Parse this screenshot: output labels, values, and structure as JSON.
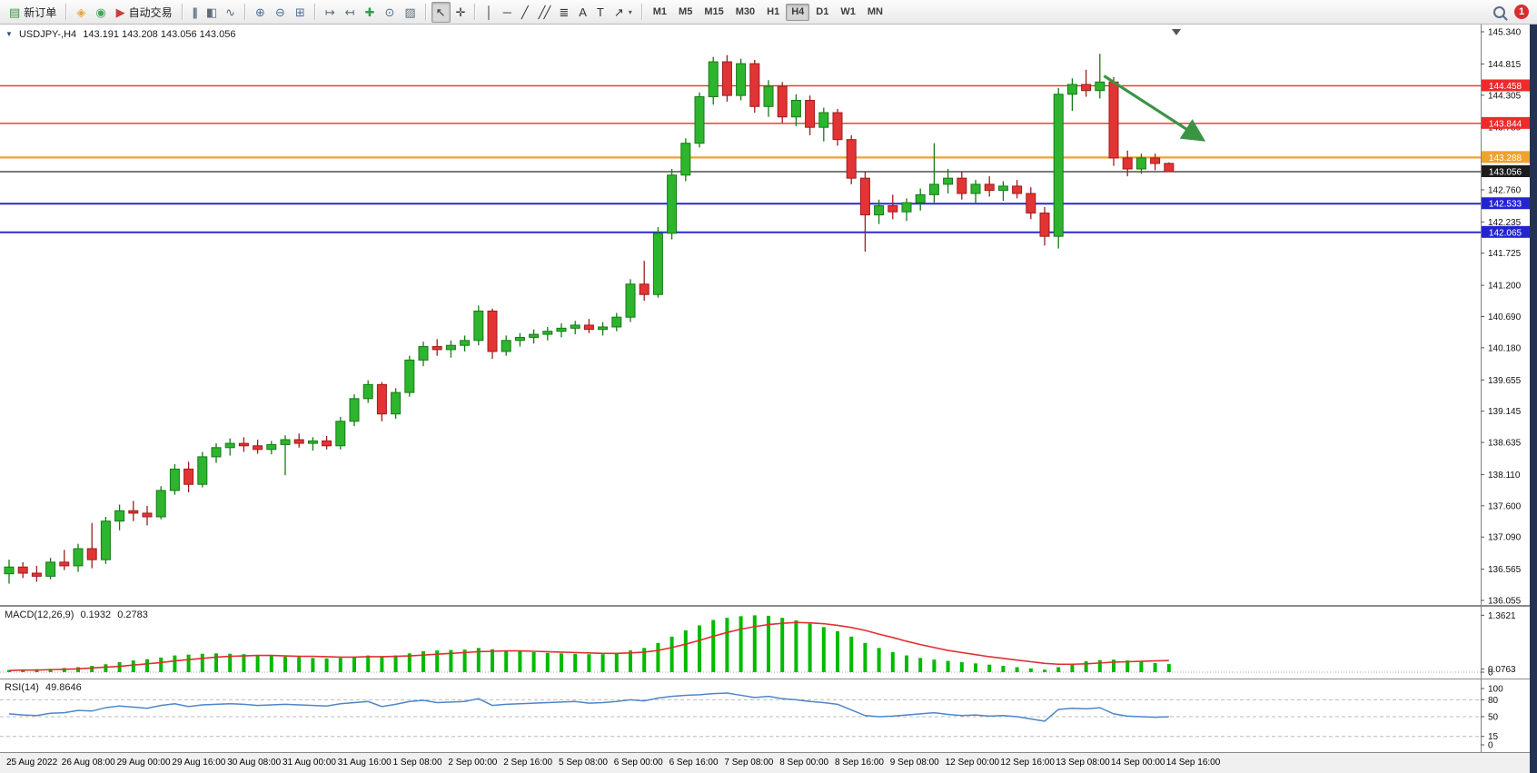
{
  "window": {
    "notification_count": "1"
  },
  "toolbar": {
    "items": [
      {
        "kind": "button",
        "name": "new-order-button",
        "icon_name": "new-order-icon",
        "glyph": "▤",
        "glyph_color": "#3d8f3d",
        "label": "新订单"
      },
      {
        "kind": "sep"
      },
      {
        "kind": "icon",
        "name": "mql5-wizard-button",
        "icon_name": "compass-icon",
        "glyph": "◈",
        "glyph_color": "#e2a63c"
      },
      {
        "kind": "icon",
        "name": "market-button",
        "icon_name": "market-icon",
        "glyph": "◉",
        "glyph_color": "#46a65a"
      },
      {
        "kind": "button",
        "name": "autotrading-button",
        "icon_name": "autotrading-play-icon",
        "glyph": "▶",
        "glyph_color": "#cf3a3a",
        "label": "自动交易"
      },
      {
        "kind": "sep"
      },
      {
        "kind": "icon",
        "name": "bars-chart-button",
        "icon_name": "ohlc-bars-icon",
        "glyph": "|||",
        "glyph_color": "#5a6b7a"
      },
      {
        "kind": "icon",
        "name": "candlestick-chart-button",
        "icon_name": "candlestick-icon",
        "glyph": "▮▯",
        "glyph_color": "#5a6b7a"
      },
      {
        "kind": "icon",
        "name": "line-chart-button",
        "icon_name": "line-chart-icon",
        "glyph": "∿",
        "glyph_color": "#5a6b7a"
      },
      {
        "kind": "sep"
      },
      {
        "kind": "icon",
        "name": "zoom-in-button",
        "icon_name": "zoom-in-icon",
        "glyph": "⊕",
        "glyph_color": "#4a6f9e"
      },
      {
        "kind": "icon",
        "name": "zoom-out-button",
        "icon_name": "zoom-out-icon",
        "glyph": "⊖",
        "glyph_color": "#4a6f9e"
      },
      {
        "kind": "icon",
        "name": "tile-windows-button",
        "icon_name": "tile-windows-icon",
        "glyph": "⊞",
        "glyph_color": "#4a6f9e"
      },
      {
        "kind": "sep"
      },
      {
        "kind": "icon",
        "name": "auto-scroll-button",
        "icon_name": "auto-scroll-icon",
        "glyph": "↦",
        "glyph_color": "#5a6b7a"
      },
      {
        "kind": "icon",
        "name": "chart-shift-button",
        "icon_name": "chart-shift-icon",
        "glyph": "↤",
        "glyph_color": "#5a6b7a"
      },
      {
        "kind": "icon",
        "name": "indicators-button",
        "icon_name": "add-indicator-icon",
        "glyph": "✚",
        "glyph_color": "#2f9e44"
      },
      {
        "kind": "icon",
        "name": "periods-button",
        "icon_name": "clock-icon",
        "glyph": "⊙",
        "glyph_color": "#4a6f9e"
      },
      {
        "kind": "icon",
        "name": "templates-button",
        "icon_name": "template-icon",
        "glyph": "▨",
        "glyph_color": "#5a6b7a"
      },
      {
        "kind": "sep"
      },
      {
        "kind": "icon",
        "name": "cursor-button",
        "icon_name": "cursor-icon",
        "glyph": "↖",
        "glyph_color": "#333333",
        "active": true
      },
      {
        "kind": "icon",
        "name": "crosshair-button",
        "icon_name": "crosshair-icon",
        "glyph": "✛",
        "glyph_color": "#333333"
      },
      {
        "kind": "sep"
      },
      {
        "kind": "icon",
        "name": "vertical-line-button",
        "icon_name": "vertical-line-icon",
        "glyph": "│",
        "glyph_color": "#333333"
      },
      {
        "kind": "icon",
        "name": "horizontal-line-button",
        "icon_name": "horizontal-line-icon",
        "glyph": "─",
        "glyph_color": "#333333"
      },
      {
        "kind": "icon",
        "name": "trendline-button",
        "icon_name": "trendline-icon",
        "glyph": "╱",
        "glyph_color": "#333333"
      },
      {
        "kind": "icon",
        "name": "channel-button",
        "icon_name": "channel-icon",
        "glyph": "╱╱",
        "glyph_color": "#333333"
      },
      {
        "kind": "icon",
        "name": "fibonacci-button",
        "icon_name": "fibonacci-icon",
        "glyph": "≣",
        "glyph_color": "#333333"
      },
      {
        "kind": "icon",
        "name": "text-button",
        "icon_name": "text-icon",
        "glyph": "A",
        "glyph_color": "#333333"
      },
      {
        "kind": "icon",
        "name": "text-label-button",
        "icon_name": "text-label-icon",
        "glyph": "T",
        "glyph_color": "#333333"
      },
      {
        "kind": "icon",
        "name": "arrows-button",
        "icon_name": "arrow-objects-icon",
        "glyph": "↗",
        "glyph_color": "#333333",
        "caret": true
      },
      {
        "kind": "sep"
      },
      {
        "kind": "tf",
        "name": "timeframe-m1-button",
        "label": "M1"
      },
      {
        "kind": "tf",
        "name": "timeframe-m5-button",
        "label": "M5"
      },
      {
        "kind": "tf",
        "name": "timeframe-m15-button",
        "label": "M15"
      },
      {
        "kind": "tf",
        "name": "timeframe-m30-button",
        "label": "M30"
      },
      {
        "kind": "tf",
        "name": "timeframe-h1-button",
        "label": "H1"
      },
      {
        "kind": "tf",
        "name": "timeframe-h4-button",
        "label": "H4",
        "active": true
      },
      {
        "kind": "tf",
        "name": "timeframe-d1-button",
        "label": "D1"
      },
      {
        "kind": "tf",
        "name": "timeframe-w1-button",
        "label": "W1"
      },
      {
        "kind": "tf",
        "name": "timeframe-mn-button",
        "label": "MN"
      },
      {
        "kind": "spacer"
      },
      {
        "kind": "search",
        "name": "search-button"
      },
      {
        "kind": "badge",
        "name": "notification-badge"
      }
    ]
  },
  "chart_data": {
    "type": "candlestick",
    "title": {
      "marker": "▼",
      "symbol": "USDJPY-,H4",
      "ohlc": "143.191 143.208 143.056 143.056"
    },
    "price_axis": {
      "max": 145.34,
      "min": 136.055,
      "ticks": [
        "145.340",
        "144.815",
        "144.305",
        "143.780",
        "142.760",
        "142.235",
        "141.725",
        "141.200",
        "140.690",
        "140.180",
        "139.655",
        "139.145",
        "138.635",
        "138.110",
        "137.600",
        "137.090",
        "136.565",
        "136.055"
      ]
    },
    "colors": {
      "up": "#2db52d",
      "up_border": "#157a15",
      "down": "#e23434",
      "down_border": "#9e1c1c"
    },
    "lines": [
      {
        "name": "resistance-line-1",
        "price": 144.458,
        "color": "#ee2b2b",
        "width": 1.4,
        "label": "144.458",
        "label_bg": "#ee2b2b"
      },
      {
        "name": "resistance-line-2",
        "price": 143.844,
        "color": "#ee2b2b",
        "width": 1.4,
        "label": "143.844",
        "label_bg": "#ee2b2b"
      },
      {
        "name": "orange-pivot-line",
        "price": 143.288,
        "color": "#f0a22e",
        "width": 2.2,
        "label": "143.288",
        "label_bg": "#f0a22e"
      },
      {
        "name": "current-price-line",
        "price": 143.056,
        "color": "#2b2b2b",
        "width": 1.2,
        "label": "143.056",
        "label_bg": "#1c1c1c"
      },
      {
        "name": "support-line-1",
        "price": 142.533,
        "color": "#2a2ad6",
        "width": 2,
        "label": "142.533",
        "label_bg": "#2424cf"
      },
      {
        "name": "support-line-2",
        "price": 142.065,
        "color": "#2a2ad6",
        "width": 2,
        "label": "142.065",
        "label_bg": "#2424cf"
      }
    ],
    "arrow": {
      "from_bar": 79.3,
      "from_price": 144.62,
      "to_bar": 86.3,
      "to_price": 143.6,
      "color": "#3a9444"
    },
    "label_step": 4,
    "time_labels": [
      "25 Aug 2022",
      "26 Aug 08:00",
      "29 Aug 00:00",
      "29 Aug 16:00",
      "30 Aug 08:00",
      "31 Aug 00:00",
      "31 Aug 16:00",
      "1 Sep 08:00",
      "2 Sep 00:00",
      "2 Sep 16:00",
      "5 Sep 08:00",
      "6 Sep 00:00",
      "6 Sep 16:00",
      "7 Sep 08:00",
      "8 Sep 00:00",
      "8 Sep 16:00",
      "9 Sep 08:00",
      "12 Sep 00:00",
      "12 Sep 16:00",
      "13 Sep 08:00",
      "14 Sep 00:00",
      "14 Sep 16:00"
    ],
    "candles": [
      [
        136.49,
        136.72,
        136.33,
        136.6
      ],
      [
        136.6,
        136.68,
        136.42,
        136.5
      ],
      [
        136.5,
        136.62,
        136.36,
        136.45
      ],
      [
        136.45,
        136.75,
        136.4,
        136.68
      ],
      [
        136.68,
        136.88,
        136.55,
        136.62
      ],
      [
        136.62,
        136.98,
        136.52,
        136.9
      ],
      [
        136.9,
        137.32,
        136.58,
        136.72
      ],
      [
        136.72,
        137.42,
        136.65,
        137.35
      ],
      [
        137.35,
        137.62,
        137.2,
        137.52
      ],
      [
        137.52,
        137.68,
        137.35,
        137.48
      ],
      [
        137.48,
        137.6,
        137.28,
        137.42
      ],
      [
        137.42,
        137.92,
        137.38,
        137.85
      ],
      [
        137.85,
        138.28,
        137.78,
        138.2
      ],
      [
        138.2,
        138.32,
        137.82,
        137.95
      ],
      [
        137.95,
        138.48,
        137.9,
        138.4
      ],
      [
        138.4,
        138.62,
        138.3,
        138.55
      ],
      [
        138.55,
        138.7,
        138.42,
        138.62
      ],
      [
        138.62,
        138.72,
        138.48,
        138.58
      ],
      [
        138.58,
        138.68,
        138.45,
        138.52
      ],
      [
        138.52,
        138.66,
        138.44,
        138.6
      ],
      [
        138.6,
        138.75,
        138.1,
        138.68
      ],
      [
        138.68,
        138.78,
        138.55,
        138.62
      ],
      [
        138.62,
        138.72,
        138.5,
        138.66
      ],
      [
        138.66,
        138.74,
        138.52,
        138.58
      ],
      [
        138.58,
        139.05,
        138.52,
        138.98
      ],
      [
        138.98,
        139.42,
        138.9,
        139.35
      ],
      [
        139.35,
        139.65,
        139.28,
        139.58
      ],
      [
        139.58,
        139.62,
        138.98,
        139.1
      ],
      [
        139.1,
        139.52,
        139.02,
        139.45
      ],
      [
        139.45,
        140.05,
        139.38,
        139.98
      ],
      [
        139.98,
        140.28,
        139.88,
        140.2
      ],
      [
        140.2,
        140.32,
        140.05,
        140.15
      ],
      [
        140.15,
        140.3,
        140.02,
        140.22
      ],
      [
        140.22,
        140.38,
        140.12,
        140.3
      ],
      [
        140.3,
        140.87,
        140.22,
        140.78
      ],
      [
        140.78,
        140.82,
        140.0,
        140.12
      ],
      [
        140.12,
        140.38,
        140.05,
        140.3
      ],
      [
        140.3,
        140.42,
        140.2,
        140.35
      ],
      [
        140.35,
        140.48,
        140.25,
        140.4
      ],
      [
        140.4,
        140.52,
        140.3,
        140.45
      ],
      [
        140.45,
        140.58,
        140.35,
        140.5
      ],
      [
        140.5,
        140.62,
        140.4,
        140.55
      ],
      [
        140.55,
        140.65,
        140.42,
        140.48
      ],
      [
        140.48,
        140.6,
        140.38,
        140.52
      ],
      [
        140.52,
        140.75,
        140.45,
        140.68
      ],
      [
        140.68,
        141.3,
        140.6,
        141.22
      ],
      [
        141.22,
        141.6,
        140.95,
        141.05
      ],
      [
        141.05,
        142.15,
        141.0,
        142.05
      ],
      [
        142.05,
        143.1,
        141.95,
        143.0
      ],
      [
        143.0,
        143.6,
        142.9,
        143.52
      ],
      [
        143.52,
        144.35,
        143.45,
        144.28
      ],
      [
        144.28,
        144.93,
        144.15,
        144.85
      ],
      [
        144.85,
        144.96,
        144.2,
        144.3
      ],
      [
        144.3,
        144.9,
        144.22,
        144.82
      ],
      [
        144.82,
        144.88,
        144.02,
        144.12
      ],
      [
        144.12,
        144.55,
        143.95,
        144.45
      ],
      [
        144.45,
        144.52,
        143.85,
        143.95
      ],
      [
        143.95,
        144.32,
        143.8,
        144.22
      ],
      [
        144.22,
        144.3,
        143.65,
        143.78
      ],
      [
        143.78,
        144.1,
        143.55,
        144.02
      ],
      [
        144.02,
        144.08,
        143.48,
        143.58
      ],
      [
        143.58,
        143.65,
        142.85,
        142.95
      ],
      [
        142.95,
        143.05,
        141.75,
        142.35
      ],
      [
        142.35,
        142.6,
        142.2,
        142.5
      ],
      [
        142.5,
        142.68,
        142.28,
        142.4
      ],
      [
        142.4,
        142.62,
        142.25,
        142.55
      ],
      [
        142.55,
        142.78,
        142.42,
        142.68
      ],
      [
        142.68,
        143.52,
        142.55,
        142.85
      ],
      [
        142.85,
        143.1,
        142.7,
        142.95
      ],
      [
        142.95,
        143.05,
        142.6,
        142.7
      ],
      [
        142.7,
        142.92,
        142.55,
        142.85
      ],
      [
        142.85,
        142.98,
        142.65,
        142.75
      ],
      [
        142.75,
        142.9,
        142.58,
        142.82
      ],
      [
        142.82,
        142.92,
        142.62,
        142.7
      ],
      [
        142.7,
        142.8,
        142.28,
        142.38
      ],
      [
        142.38,
        142.48,
        141.85,
        142.0
      ],
      [
        142.0,
        144.42,
        141.8,
        144.32
      ],
      [
        144.32,
        144.58,
        144.05,
        144.48
      ],
      [
        144.48,
        144.72,
        144.28,
        144.38
      ],
      [
        144.38,
        144.98,
        144.25,
        144.52
      ],
      [
        144.52,
        144.6,
        143.15,
        143.28
      ],
      [
        143.28,
        143.4,
        142.98,
        143.1
      ],
      [
        143.1,
        143.35,
        143.02,
        143.28
      ],
      [
        143.28,
        143.35,
        143.08,
        143.19
      ],
      [
        143.191,
        143.208,
        143.056,
        143.056
      ]
    ],
    "indicators": {
      "macd": {
        "label": "MACD(12,26,9)",
        "main_value": "0.1932",
        "signal_value": "0.2783",
        "scale": [
          "1.3621",
          "0.0763",
          "0"
        ],
        "max": 1.3621,
        "histogram_color": "#00bb00",
        "signal_color": "#e03030",
        "histogram": [
          0.05,
          0.06,
          0.07,
          0.08,
          0.1,
          0.12,
          0.15,
          0.19,
          0.24,
          0.28,
          0.31,
          0.35,
          0.4,
          0.42,
          0.44,
          0.45,
          0.44,
          0.43,
          0.41,
          0.39,
          0.37,
          0.36,
          0.34,
          0.33,
          0.34,
          0.37,
          0.4,
          0.38,
          0.4,
          0.45,
          0.5,
          0.52,
          0.53,
          0.54,
          0.58,
          0.55,
          0.52,
          0.5,
          0.48,
          0.46,
          0.45,
          0.44,
          0.43,
          0.43,
          0.45,
          0.52,
          0.58,
          0.7,
          0.85,
          1.0,
          1.12,
          1.25,
          1.3,
          1.34,
          1.36,
          1.35,
          1.3,
          1.24,
          1.16,
          1.08,
          0.98,
          0.85,
          0.7,
          0.58,
          0.48,
          0.4,
          0.34,
          0.3,
          0.27,
          0.24,
          0.21,
          0.18,
          0.15,
          0.12,
          0.09,
          0.06,
          0.12,
          0.2,
          0.26,
          0.29,
          0.3,
          0.28,
          0.25,
          0.22,
          0.1932
        ],
        "signal": [
          0.04,
          0.05,
          0.05,
          0.06,
          0.07,
          0.08,
          0.1,
          0.12,
          0.14,
          0.17,
          0.2,
          0.23,
          0.27,
          0.3,
          0.33,
          0.36,
          0.38,
          0.39,
          0.4,
          0.4,
          0.39,
          0.38,
          0.38,
          0.37,
          0.36,
          0.36,
          0.37,
          0.37,
          0.38,
          0.39,
          0.41,
          0.43,
          0.45,
          0.47,
          0.49,
          0.5,
          0.51,
          0.51,
          0.5,
          0.49,
          0.48,
          0.47,
          0.46,
          0.45,
          0.45,
          0.46,
          0.48,
          0.52,
          0.59,
          0.67,
          0.76,
          0.86,
          0.95,
          1.03,
          1.09,
          1.14,
          1.17,
          1.19,
          1.18,
          1.16,
          1.12,
          1.07,
          1.0,
          0.91,
          0.83,
          0.74,
          0.66,
          0.59,
          0.52,
          0.47,
          0.42,
          0.37,
          0.33,
          0.29,
          0.25,
          0.21,
          0.19,
          0.19,
          0.2,
          0.22,
          0.24,
          0.25,
          0.26,
          0.27,
          0.2783
        ]
      },
      "rsi": {
        "label": "RSI(14)",
        "value": "49.8646",
        "scale": [
          "100",
          "80",
          "50",
          "15",
          "0"
        ],
        "levels": [
          80,
          50,
          15
        ],
        "line_color": "#4f86c6",
        "values": [
          55,
          53,
          52,
          56,
          57,
          61,
          60,
          66,
          69,
          67,
          65,
          70,
          73,
          68,
          71,
          72,
          73,
          72,
          70,
          71,
          72,
          71,
          70,
          69,
          73,
          75,
          77,
          68,
          72,
          77,
          79,
          75,
          76,
          77,
          82,
          70,
          72,
          73,
          74,
          75,
          76,
          77,
          74,
          75,
          77,
          80,
          78,
          83,
          86,
          88,
          89,
          91,
          92,
          88,
          84,
          86,
          82,
          80,
          77,
          75,
          72,
          62,
          52,
          50,
          51,
          53,
          55,
          57,
          54,
          52,
          53,
          51,
          52,
          50,
          46,
          42,
          63,
          65,
          64,
          66,
          55,
          51,
          50,
          49,
          49.86
        ]
      }
    }
  }
}
